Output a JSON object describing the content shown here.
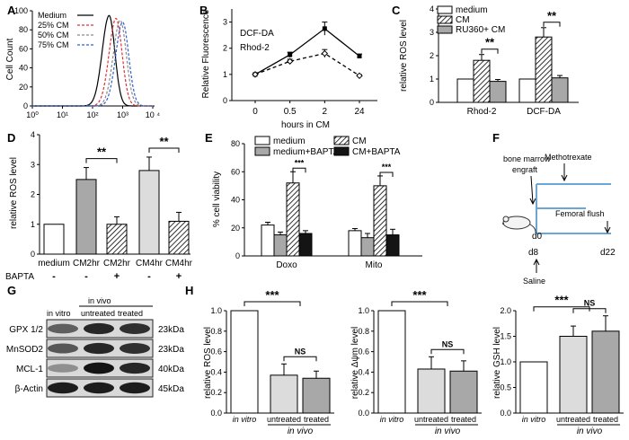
{
  "panels": {
    "A": "A",
    "B": "B",
    "C": "C",
    "D": "D",
    "E": "E",
    "F": "F",
    "G": "G",
    "H": "H"
  },
  "colors": {
    "medium": "#000000",
    "cm25": "#e03030",
    "cm50": "#8a8a8a",
    "cm75": "#3060d0",
    "gray_bar": "#a8a8a8",
    "light_bar": "#dcdcdc",
    "dark_bar": "#141414",
    "schematic_line": "#6aa6d6"
  },
  "chart_data": [
    {
      "id": "A",
      "type": "line",
      "title": "",
      "xlabel": "",
      "ylabel": "Cell Count",
      "xscale": "log",
      "xlim_exp": [
        0,
        4
      ],
      "x_tick_labels": [
        "10⁰",
        "10¹",
        "10²",
        "10³",
        "10 ⁴"
      ],
      "x_tick_exponents": [
        0,
        1,
        2,
        3,
        4
      ],
      "ylim": [
        0,
        100
      ],
      "y_tick_values": [
        0,
        20,
        40,
        60,
        80,
        100
      ],
      "y_tick_labels": [
        "0",
        "20",
        "40",
        "60",
        "80",
        "100"
      ],
      "legend": {
        "placement": "top-left",
        "entries": [
          "Medium",
          "25% CM",
          "50% CM",
          "75% CM"
        ]
      },
      "series": [
        {
          "name": "Medium",
          "color_key": "medium",
          "style": "solid",
          "peak_exp": 2.55,
          "peak": 95,
          "sd_left": 0.23,
          "sd_right": 0.19
        },
        {
          "name": "25% CM",
          "color_key": "cm25",
          "style": "dashed",
          "peak_exp": 2.78,
          "peak": 92,
          "sd_left": 0.23,
          "sd_right": 0.2
        },
        {
          "name": "50% CM",
          "color_key": "cm50",
          "style": "dashed",
          "peak_exp": 2.92,
          "peak": 90,
          "sd_left": 0.23,
          "sd_right": 0.2
        },
        {
          "name": "75% CM",
          "color_key": "cm75",
          "style": "dashed",
          "peak_exp": 3.0,
          "peak": 88,
          "sd_left": 0.23,
          "sd_right": 0.2
        }
      ]
    },
    {
      "id": "B",
      "type": "line",
      "title": "",
      "xlabel": "hours in CM",
      "ylabel": "Relative Fluorescence",
      "categories": [
        "0",
        "0.5",
        "2",
        "24"
      ],
      "ylim": [
        0,
        3.5
      ],
      "y_tick_values": [
        0,
        1,
        2,
        3
      ],
      "y_tick_labels": [
        "0",
        "1",
        "2",
        "3"
      ],
      "series": [
        {
          "name": "DCF-DA",
          "style": "solid",
          "marker": "square",
          "values": [
            1.0,
            1.75,
            2.75,
            1.7
          ],
          "errors": [
            0.02,
            0.1,
            0.25,
            0.08
          ]
        },
        {
          "name": "Rhod-2",
          "style": "dashed",
          "marker": "diamond",
          "values": [
            1.0,
            1.5,
            1.8,
            0.95
          ],
          "errors": [
            0.02,
            0.08,
            0.15,
            0.04
          ]
        }
      ],
      "annotations": [
        "DCF-DA",
        "Rhod-2"
      ]
    },
    {
      "id": "C",
      "type": "bar",
      "xlabel": "",
      "ylabel": "relative ROS level",
      "categories": [
        "Rhod-2",
        "DCF-DA"
      ],
      "ylim": [
        0,
        4
      ],
      "y_tick_values": [
        0,
        1,
        2,
        3,
        4
      ],
      "y_tick_labels": [
        "0",
        "1",
        "2",
        "3",
        "4"
      ],
      "legend": {
        "placement": "top",
        "entries": [
          "medium",
          "CM",
          "RU360+ CM"
        ]
      },
      "series": [
        {
          "name": "medium",
          "fill": "white",
          "values": [
            1.0,
            1.0
          ],
          "errors": [
            0.0,
            0.0
          ]
        },
        {
          "name": "CM",
          "fill": "hatch",
          "values": [
            1.8,
            2.8
          ],
          "errors": [
            0.25,
            0.4
          ]
        },
        {
          "name": "RU360+ CM",
          "fill": "gray",
          "values": [
            0.9,
            1.05
          ],
          "errors": [
            0.08,
            0.1
          ]
        }
      ],
      "significance": [
        {
          "group": 0,
          "from": 1,
          "to": 2,
          "label": "**"
        },
        {
          "group": 1,
          "from": 1,
          "to": 2,
          "label": "**"
        }
      ]
    },
    {
      "id": "D",
      "type": "bar",
      "xlabel": "",
      "ylabel": "relative ROS level",
      "categories": [
        "medium",
        "CM2hr",
        "CM2hr",
        "CM4hr",
        "CM4hr"
      ],
      "bapta_label": "BAPTA",
      "bapta_signs": [
        "-",
        "-",
        "+",
        "-",
        "+"
      ],
      "fills": [
        "white",
        "gray",
        "hatch",
        "light",
        "hatch"
      ],
      "values": [
        1.0,
        2.5,
        1.0,
        2.8,
        1.1
      ],
      "errors": [
        0.0,
        0.4,
        0.25,
        0.45,
        0.3
      ],
      "ylim": [
        0,
        4
      ],
      "y_tick_values": [
        0,
        1,
        2,
        3,
        4
      ],
      "y_tick_labels": [
        "0",
        "1",
        "2",
        "3",
        "4"
      ],
      "significance": [
        {
          "from": 1,
          "to": 2,
          "label": "**"
        },
        {
          "from": 3,
          "to": 4,
          "label": "**"
        }
      ]
    },
    {
      "id": "E",
      "type": "bar",
      "xlabel": "",
      "ylabel": "% cell viability",
      "categories": [
        "Doxo",
        "Mito"
      ],
      "ylim": [
        0,
        80
      ],
      "y_tick_values": [
        0,
        20,
        40,
        60,
        80
      ],
      "y_tick_labels": [
        "0",
        "20",
        "40",
        "60",
        "80"
      ],
      "legend": {
        "placement": "top",
        "entries": [
          "medium",
          "CM",
          "medium+BAPTA",
          "CM+BAPTA"
        ]
      },
      "series": [
        {
          "name": "medium",
          "fill": "white",
          "values": [
            22,
            18
          ],
          "errors": [
            2,
            1.5
          ]
        },
        {
          "name": "medium+BAPTA",
          "fill": "gray",
          "values": [
            15,
            13
          ],
          "errors": [
            2,
            3
          ]
        },
        {
          "name": "CM",
          "fill": "hatch",
          "values": [
            52,
            50
          ],
          "errors": [
            8,
            7
          ]
        },
        {
          "name": "CM+BAPTA",
          "fill": "dark",
          "values": [
            16,
            15
          ],
          "errors": [
            2,
            4
          ]
        }
      ],
      "significance": [
        {
          "group": 0,
          "from": 2,
          "to": 3,
          "label": "***"
        },
        {
          "group": 1,
          "from": 2,
          "to": 3,
          "label": "***"
        }
      ]
    },
    {
      "id": "H1",
      "type": "bar",
      "ylabel": "relative ROS level",
      "categories": [
        "in vitro",
        "untreated",
        "treated"
      ],
      "group_label": "in vivo",
      "fills": [
        "white",
        "light",
        "gray"
      ],
      "values": [
        1.0,
        0.37,
        0.34
      ],
      "errors": [
        0.0,
        0.11,
        0.07
      ],
      "ylim": [
        0,
        1.0
      ],
      "y_tick_values": [
        0,
        0.2,
        0.4,
        0.6,
        0.8,
        1.0
      ],
      "y_tick_labels": [
        "0.0",
        "0.2",
        "0.4",
        "0.6",
        "0.8",
        "1.0"
      ],
      "significance": [
        {
          "from": 0,
          "to": 1.5,
          "label": "***"
        },
        {
          "from": 1,
          "to": 2,
          "label": "NS"
        }
      ]
    },
    {
      "id": "H2",
      "type": "bar",
      "ylabel": "relative Δψm level",
      "categories": [
        "in vitro",
        "untreated",
        "treated"
      ],
      "group_label": "in vivo",
      "fills": [
        "white",
        "light",
        "gray"
      ],
      "values": [
        1.0,
        0.43,
        0.41
      ],
      "errors": [
        0.0,
        0.12,
        0.1
      ],
      "ylim": [
        0,
        1.0
      ],
      "y_tick_values": [
        0,
        0.2,
        0.4,
        0.6,
        0.8,
        1.0
      ],
      "y_tick_labels": [
        "0.0",
        "0.2",
        "0.4",
        "0.6",
        "0.8",
        "1.0"
      ],
      "significance": [
        {
          "from": 0,
          "to": 1.5,
          "label": "***"
        },
        {
          "from": 1,
          "to": 2,
          "label": "NS"
        }
      ]
    },
    {
      "id": "H3",
      "type": "bar",
      "ylabel": "relative GSH level",
      "categories": [
        "in vitro",
        "untreated",
        "treated"
      ],
      "group_label": "in vivo",
      "fills": [
        "white",
        "light",
        "gray"
      ],
      "values": [
        1.0,
        1.5,
        1.6
      ],
      "errors": [
        0.0,
        0.2,
        0.3
      ],
      "ylim": [
        0,
        2.0
      ],
      "y_tick_values": [
        0,
        0.5,
        1.0,
        1.5,
        2.0
      ],
      "y_tick_labels": [
        "0.0",
        "0.5",
        "1.0",
        "1.5",
        "2.0"
      ],
      "significance": [
        {
          "from": 0,
          "to": 1.5,
          "label": "***"
        },
        {
          "from": 1,
          "to": 2,
          "label": "NS"
        }
      ]
    }
  ],
  "schematic": {
    "bone_marrow": "bone marrow",
    "engraft": "engraft",
    "methotrexate": "Methotrexate",
    "femoral_flush": "Femoral flush",
    "saline": "Saline",
    "d0": "d0",
    "d8": "d8",
    "d22": "d22"
  },
  "blot": {
    "in_vivo": "in vivo",
    "columns": [
      "in vitro",
      "untreated",
      "treated"
    ],
    "rows": [
      {
        "name": "GPX 1/2",
        "size": "23kDa",
        "intensity": [
          0.55,
          0.85,
          0.8
        ]
      },
      {
        "name": "MnSOD2",
        "size": "23kDa",
        "intensity": [
          0.6,
          0.85,
          0.8
        ]
      },
      {
        "name": "MCL-1",
        "size": "40kDa",
        "intensity": [
          0.3,
          0.95,
          0.85
        ]
      },
      {
        "name": "β-Actin",
        "size": "45kDa",
        "intensity": [
          0.9,
          0.9,
          0.9
        ]
      }
    ]
  }
}
